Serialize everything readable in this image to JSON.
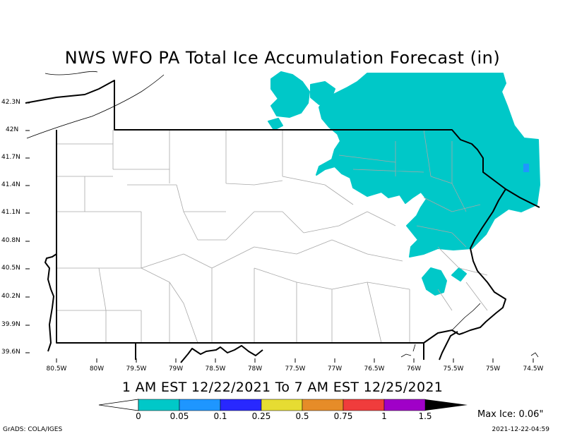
{
  "title": "NWS WFO PA Total Ice Accumulation Forecast (in)",
  "valid_range": "1 AM EST 12/22/2021 To 7 AM EST 12/25/2021",
  "latitude_labels": [
    "42.3N",
    "42N",
    "41.7N",
    "41.4N",
    "41.1N",
    "40.8N",
    "40.5N",
    "40.2N",
    "39.9N",
    "39.6N"
  ],
  "longitude_labels": [
    "80.5W",
    "80W",
    "79.5W",
    "79W",
    "78.5W",
    "78W",
    "77.5W",
    "77W",
    "76.5W",
    "76W",
    "75.5W",
    "75W",
    "74.5W"
  ],
  "color_scale": {
    "labels": [
      "0",
      "0.05",
      "0.1",
      "0.25",
      "0.5",
      "0.75",
      "1",
      "1.5"
    ],
    "colors": [
      "#00c8c8",
      "#1e96ff",
      "#2828ff",
      "#e6dc32",
      "#e68c28",
      "#f03c3c",
      "#a000c8"
    ],
    "under_color": "#ffffff",
    "over_color": "#000000"
  },
  "ice_fill_color": "#00c8c8",
  "max_ice": "Max Ice: 0.06\"",
  "credit": "GrADS: COLA/IGES",
  "timestamp": "2021-12-22-04:59"
}
